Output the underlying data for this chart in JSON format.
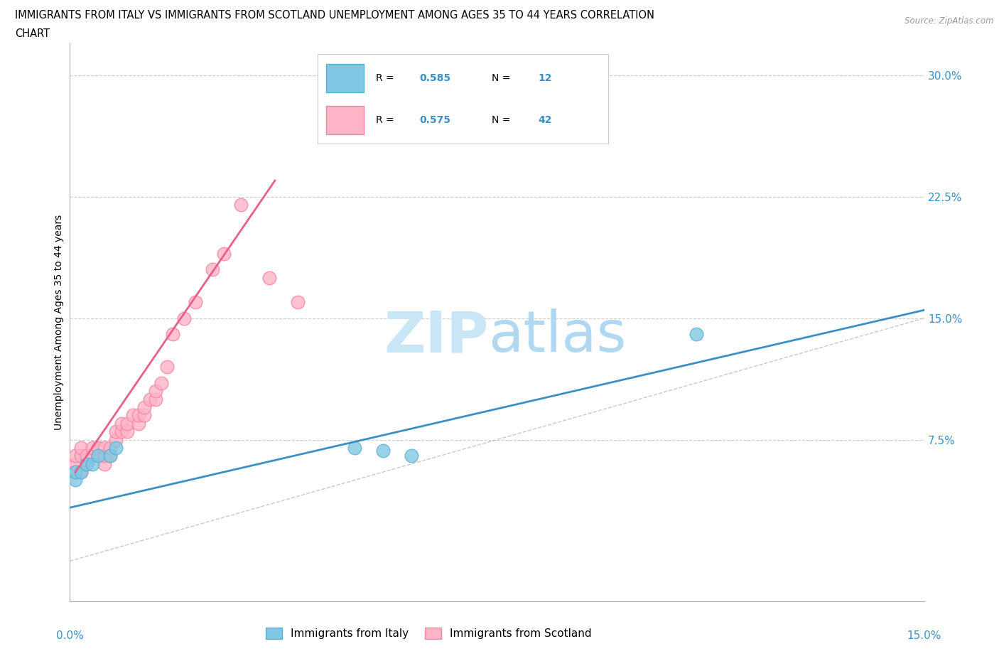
{
  "title_line1": "IMMIGRANTS FROM ITALY VS IMMIGRANTS FROM SCOTLAND UNEMPLOYMENT AMONG AGES 35 TO 44 YEARS CORRELATION",
  "title_line2": "CHART",
  "source": "Source: ZipAtlas.com",
  "ylabel": "Unemployment Among Ages 35 to 44 years",
  "yticks": [
    "30.0%",
    "22.5%",
    "15.0%",
    "7.5%"
  ],
  "ytick_vals": [
    0.3,
    0.225,
    0.15,
    0.075
  ],
  "xmin": 0.0,
  "xmax": 0.15,
  "ymin": -0.025,
  "ymax": 0.32,
  "italy_color": "#7ec8e3",
  "italy_edge": "#5aafd6",
  "scotland_color": "#ffb3c6",
  "scotland_edge": "#f783a0",
  "italy_R": "0.585",
  "italy_N": "12",
  "scotland_R": "0.575",
  "scotland_N": "42",
  "italy_x": [
    0.001,
    0.001,
    0.002,
    0.003,
    0.004,
    0.005,
    0.007,
    0.008,
    0.05,
    0.055,
    0.06,
    0.11
  ],
  "italy_y": [
    0.05,
    0.055,
    0.055,
    0.06,
    0.06,
    0.065,
    0.065,
    0.07,
    0.07,
    0.068,
    0.065,
    0.14
  ],
  "scotland_x": [
    0.001,
    0.001,
    0.001,
    0.002,
    0.002,
    0.002,
    0.003,
    0.003,
    0.004,
    0.004,
    0.005,
    0.005,
    0.006,
    0.006,
    0.006,
    0.007,
    0.007,
    0.008,
    0.008,
    0.009,
    0.009,
    0.01,
    0.01,
    0.011,
    0.012,
    0.012,
    0.013,
    0.013,
    0.014,
    0.015,
    0.015,
    0.016,
    0.017,
    0.018,
    0.02,
    0.022,
    0.025,
    0.027,
    0.03,
    0.035,
    0.04,
    0.05
  ],
  "scotland_y": [
    0.055,
    0.06,
    0.065,
    0.055,
    0.065,
    0.07,
    0.06,
    0.065,
    0.065,
    0.07,
    0.065,
    0.07,
    0.06,
    0.065,
    0.07,
    0.065,
    0.07,
    0.075,
    0.08,
    0.08,
    0.085,
    0.08,
    0.085,
    0.09,
    0.085,
    0.09,
    0.09,
    0.095,
    0.1,
    0.1,
    0.105,
    0.11,
    0.12,
    0.14,
    0.15,
    0.16,
    0.18,
    0.19,
    0.22,
    0.175,
    0.16,
    0.28
  ],
  "italy_line_x": [
    0.0,
    0.15
  ],
  "italy_line_y": [
    0.033,
    0.155
  ],
  "scotland_line_x": [
    0.001,
    0.036
  ],
  "scotland_line_y": [
    0.055,
    0.235
  ],
  "background_color": "#ffffff",
  "grid_color": "#cccccc",
  "watermark_zip_color": "#c8e6f5",
  "watermark_atlas_color": "#b0d8f0"
}
